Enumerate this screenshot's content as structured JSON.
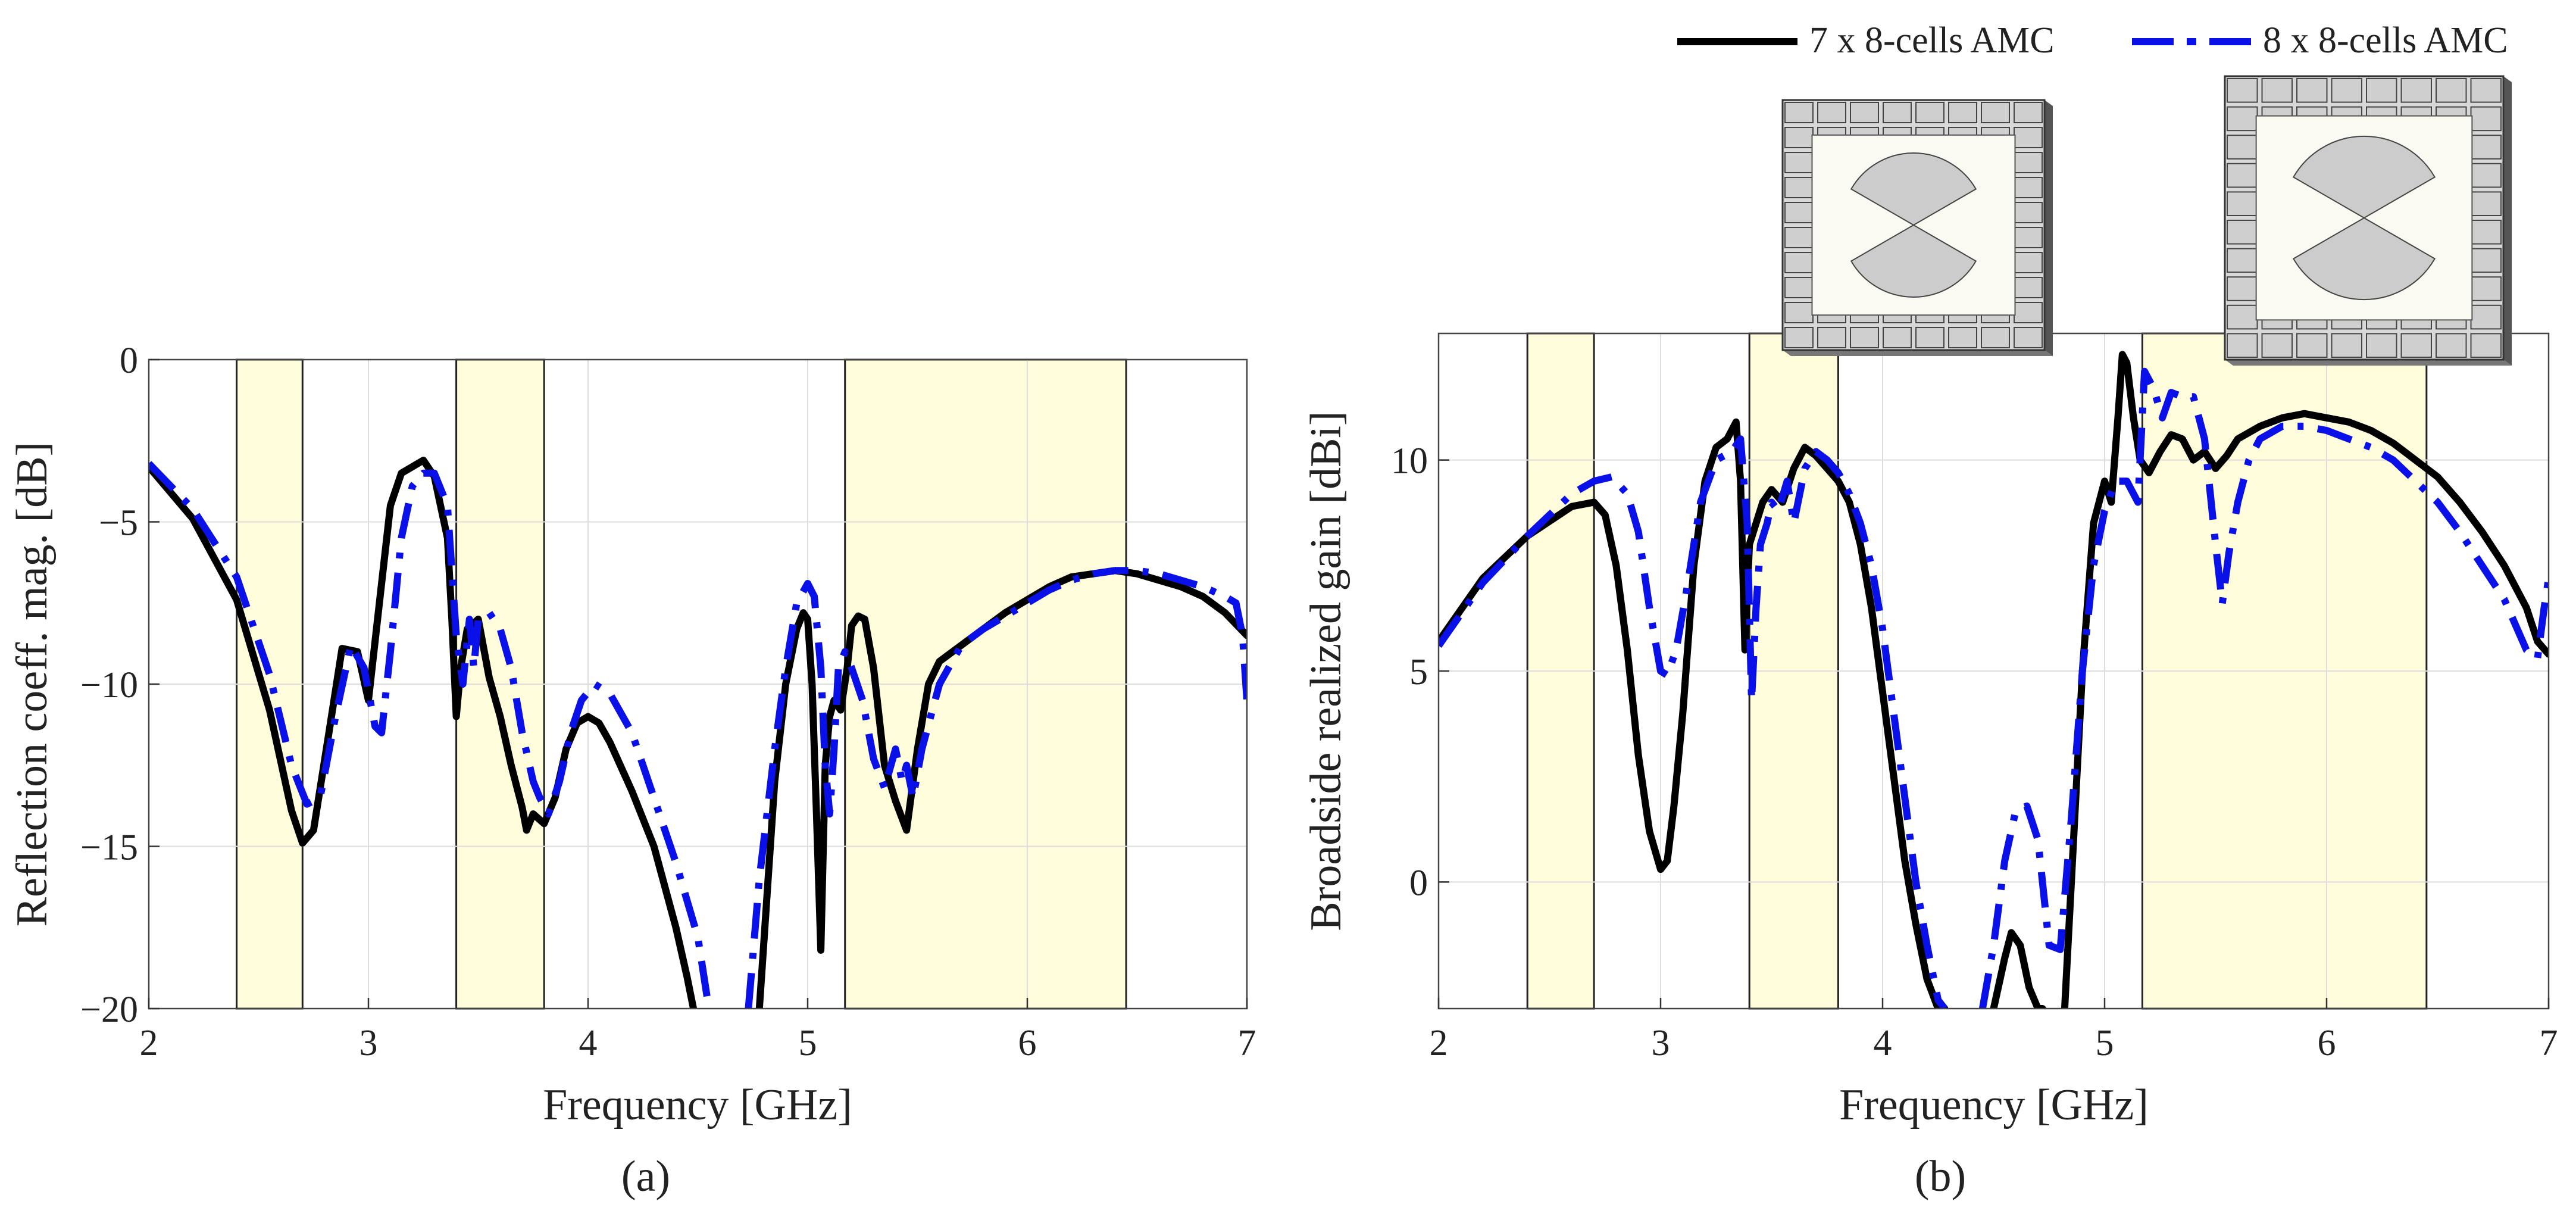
{
  "figure": {
    "legend": {
      "entries": [
        {
          "label": "7 x 8-cells AMC",
          "color": "#000000",
          "style": "solid"
        },
        {
          "label": "8 x 8-cells AMC",
          "color": "#0a10e8",
          "style": "dashdot"
        }
      ]
    },
    "colors": {
      "band_fill": "#fefcdb",
      "grid": "#dddddd",
      "axis": "#333333",
      "series1": "#000000",
      "series2": "#0a10e8"
    },
    "panel_a_caption": "(a)",
    "panel_b_caption": "(b)"
  },
  "chart_data": [
    {
      "type": "line",
      "panel": "a",
      "xlabel": "Frequency [GHz]",
      "ylabel": "Reflection coeff. mag. [dB]",
      "xlim": [
        2,
        7
      ],
      "ylim": [
        -20,
        0
      ],
      "xticks": [
        2,
        3,
        4,
        5,
        6,
        7
      ],
      "yticks": [
        0,
        -5,
        -10,
        -15,
        -20
      ],
      "grid": true,
      "shaded_bands": [
        [
          2.4,
          2.7
        ],
        [
          3.4,
          3.8
        ],
        [
          5.17,
          6.45
        ]
      ],
      "series": [
        {
          "name": "7 x 8-cells AMC",
          "x": [
            2.0,
            2.2,
            2.4,
            2.55,
            2.65,
            2.7,
            2.75,
            2.82,
            2.88,
            2.95,
            3.0,
            3.05,
            3.1,
            3.15,
            3.2,
            3.25,
            3.3,
            3.36,
            3.38,
            3.4,
            3.42,
            3.45,
            3.5,
            3.55,
            3.6,
            3.65,
            3.7,
            3.72,
            3.75,
            3.8,
            3.85,
            3.9,
            3.95,
            4.0,
            4.05,
            4.1,
            4.2,
            4.3,
            4.4,
            4.45,
            4.48,
            null,
            4.78,
            4.8,
            4.85,
            4.9,
            4.95,
            4.98,
            5.0,
            5.02,
            5.04,
            5.06,
            5.08,
            5.1,
            5.12,
            5.15,
            5.18,
            5.2,
            5.23,
            5.26,
            5.3,
            5.35,
            5.4,
            5.45,
            5.5,
            5.55,
            5.6,
            5.7,
            5.8,
            5.9,
            6.0,
            6.1,
            6.2,
            6.3,
            6.4,
            6.5,
            6.6,
            6.7,
            6.8,
            6.9,
            7.0
          ],
          "y": [
            -3.3,
            -4.9,
            -7.4,
            -10.8,
            -13.9,
            -14.9,
            -14.5,
            -11.5,
            -8.9,
            -9.0,
            -10.5,
            -7.5,
            -4.5,
            -3.5,
            -3.3,
            -3.1,
            -3.6,
            -5.5,
            -8.0,
            -11.0,
            -9.5,
            -8.3,
            -8.0,
            -9.8,
            -11.0,
            -12.5,
            -13.8,
            -14.5,
            -14.0,
            -14.3,
            -13.5,
            -12.0,
            -11.2,
            -11.0,
            -11.2,
            -11.8,
            -13.3,
            -15.0,
            -17.5,
            -19.0,
            -20.0,
            null,
            -20.0,
            -18.0,
            -13.0,
            -10.0,
            -8.3,
            -7.8,
            -8.0,
            -10.0,
            -14.0,
            -18.2,
            -12.5,
            -11.0,
            -10.5,
            -10.8,
            -9.5,
            -8.2,
            -7.9,
            -8.0,
            -9.5,
            -12.5,
            -13.6,
            -14.5,
            -12.0,
            -10.0,
            -9.3,
            -8.8,
            -8.3,
            -7.8,
            -7.4,
            -7.0,
            -6.7,
            -6.6,
            -6.5,
            -6.6,
            -6.8,
            -7.0,
            -7.3,
            -7.8,
            -8.5
          ]
        },
        {
          "name": "8 x 8-cells AMC",
          "x": [
            2.0,
            2.2,
            2.4,
            2.55,
            2.65,
            2.72,
            2.78,
            2.85,
            2.92,
            2.98,
            3.03,
            3.06,
            3.1,
            3.15,
            3.2,
            3.25,
            3.3,
            3.36,
            3.4,
            3.43,
            3.46,
            3.48,
            3.5,
            3.55,
            3.6,
            3.65,
            3.7,
            3.75,
            3.78,
            3.82,
            3.87,
            3.92,
            3.97,
            4.03,
            4.1,
            4.2,
            4.3,
            4.4,
            4.5,
            4.55,
            null,
            4.73,
            4.78,
            4.85,
            4.9,
            4.95,
            5.0,
            5.03,
            5.06,
            5.08,
            5.1,
            5.12,
            5.14,
            5.17,
            5.2,
            5.25,
            5.3,
            5.35,
            5.4,
            5.43,
            5.45,
            5.48,
            5.52,
            5.6,
            5.7,
            5.8,
            5.9,
            6.0,
            6.1,
            6.2,
            6.3,
            6.4,
            6.5,
            6.6,
            6.7,
            6.8,
            6.9,
            6.95,
            6.98,
            7.0
          ],
          "y": [
            -3.2,
            -4.6,
            -6.7,
            -9.7,
            -12.5,
            -13.7,
            -13.5,
            -11.0,
            -8.8,
            -9.5,
            -11.3,
            -11.5,
            -9.0,
            -5.5,
            -3.9,
            -3.5,
            -3.5,
            -4.5,
            -8.5,
            -10.0,
            -8.0,
            -9.5,
            -8.0,
            -7.8,
            -8.3,
            -9.5,
            -11.5,
            -13.0,
            -13.5,
            -14.0,
            -13.0,
            -11.5,
            -10.5,
            -10.0,
            -10.3,
            -11.5,
            -13.5,
            -15.5,
            -17.8,
            -20.0,
            null,
            -20.0,
            -16.0,
            -12.0,
            -9.5,
            -7.5,
            -6.9,
            -7.3,
            -9.5,
            -12.5,
            -14.0,
            -12.0,
            -9.5,
            -9.0,
            -9.5,
            -10.5,
            -12.3,
            -13.2,
            -12.0,
            -13.0,
            -12.5,
            -13.5,
            -12.0,
            -10.0,
            -8.8,
            -8.3,
            -7.9,
            -7.5,
            -7.1,
            -6.8,
            -6.6,
            -6.5,
            -6.5,
            -6.6,
            -6.8,
            -7.0,
            -7.3,
            -7.5,
            -8.5,
            -10.5
          ]
        }
      ]
    },
    {
      "type": "line",
      "panel": "b",
      "xlabel": "Frequency [GHz]",
      "ylabel": "Broadside realized gain [dBi]",
      "xlim": [
        2,
        7
      ],
      "ylim": [
        -3,
        13
      ],
      "xticks": [
        2,
        3,
        4,
        5,
        6,
        7
      ],
      "yticks": [
        10,
        5,
        0
      ],
      "grid": true,
      "shaded_bands": [
        [
          2.4,
          2.7
        ],
        [
          3.4,
          3.8
        ],
        [
          5.17,
          6.45
        ]
      ],
      "legend": [
        "7 x 8-cells AMC",
        "8 x 8-cells AMC"
      ],
      "series": [
        {
          "name": "7 x 8-cells AMC",
          "x": [
            2.0,
            2.2,
            2.4,
            2.6,
            2.7,
            2.75,
            2.8,
            2.85,
            2.9,
            2.95,
            3.0,
            3.03,
            3.06,
            3.1,
            3.15,
            3.2,
            3.25,
            3.3,
            3.34,
            3.36,
            3.38,
            3.4,
            3.43,
            3.46,
            3.5,
            3.55,
            3.6,
            3.65,
            3.7,
            3.75,
            3.8,
            3.85,
            3.9,
            3.95,
            4.0,
            4.05,
            4.1,
            4.15,
            4.2,
            4.25,
            4.28,
            null,
            4.5,
            4.55,
            4.58,
            4.62,
            4.66,
            4.7,
            4.72,
            null,
            4.82,
            4.85,
            4.9,
            4.95,
            5.0,
            5.03,
            5.06,
            5.08,
            5.1,
            5.13,
            5.16,
            5.2,
            5.25,
            5.3,
            5.35,
            5.4,
            5.45,
            5.5,
            5.55,
            5.6,
            5.7,
            5.8,
            5.9,
            6.0,
            6.1,
            6.2,
            6.3,
            6.4,
            6.5,
            6.6,
            6.7,
            6.8,
            6.9,
            6.95,
            7.0
          ],
          "y": [
            5.7,
            7.2,
            8.2,
            8.9,
            9.0,
            8.7,
            7.5,
            5.5,
            3.0,
            1.2,
            0.3,
            0.5,
            1.8,
            4.0,
            7.5,
            9.5,
            10.3,
            10.5,
            10.9,
            9.5,
            5.5,
            8.0,
            8.5,
            9.0,
            9.3,
            9.0,
            9.8,
            10.3,
            10.1,
            9.8,
            9.5,
            9.0,
            8.0,
            6.5,
            4.5,
            2.5,
            0.5,
            -1.0,
            -2.3,
            -3.0,
            -3.0,
            null,
            -3.0,
            -1.8,
            -1.2,
            -1.5,
            -2.5,
            -3.0,
            -3.0,
            null,
            -3.0,
            0.0,
            5.0,
            8.5,
            9.5,
            9.0,
            11.0,
            12.5,
            12.3,
            11.0,
            10.0,
            9.7,
            10.2,
            10.6,
            10.5,
            10.0,
            10.2,
            9.8,
            10.1,
            10.5,
            10.8,
            11.0,
            11.1,
            11.0,
            10.9,
            10.7,
            10.4,
            10.0,
            9.6,
            9.0,
            8.3,
            7.5,
            6.5,
            5.7,
            5.4
          ]
        },
        {
          "name": "8 x 8-cells AMC",
          "x": [
            2.0,
            2.2,
            2.4,
            2.6,
            2.7,
            2.78,
            2.85,
            2.9,
            2.95,
            3.0,
            3.03,
            3.07,
            3.12,
            3.18,
            3.25,
            3.32,
            3.36,
            3.39,
            3.41,
            3.43,
            3.45,
            3.48,
            3.5,
            3.53,
            3.57,
            3.6,
            3.65,
            3.7,
            3.75,
            3.8,
            3.85,
            3.9,
            3.95,
            4.0,
            4.05,
            4.1,
            4.15,
            4.2,
            4.25,
            4.28,
            null,
            4.45,
            4.5,
            4.55,
            4.6,
            4.65,
            4.7,
            4.75,
            4.8,
            4.85,
            4.9,
            4.95,
            5.0,
            5.05,
            5.1,
            5.15,
            5.18,
            5.22,
            5.26,
            5.3,
            5.35,
            5.4,
            5.45,
            5.5,
            5.53,
            5.56,
            5.6,
            5.65,
            5.7,
            5.8,
            5.9,
            6.0,
            6.1,
            6.2,
            6.3,
            6.4,
            6.5,
            6.6,
            6.7,
            6.8,
            6.9,
            6.95,
            6.98,
            7.0
          ],
          "y": [
            5.6,
            7.1,
            8.2,
            9.2,
            9.5,
            9.6,
            9.2,
            8.3,
            6.5,
            5.0,
            4.9,
            5.5,
            7.0,
            9.0,
            10.0,
            10.2,
            10.5,
            8.5,
            4.3,
            6.5,
            8.0,
            8.5,
            9.0,
            8.8,
            9.5,
            8.5,
            9.8,
            10.2,
            10.0,
            9.7,
            9.2,
            8.5,
            7.5,
            6.0,
            4.0,
            2.0,
            0.0,
            -1.5,
            -2.8,
            -3.0,
            null,
            -3.0,
            -1.5,
            0.5,
            1.7,
            1.8,
            1.0,
            -1.5,
            -1.6,
            1.5,
            5.0,
            7.5,
            8.8,
            9.5,
            9.5,
            9.0,
            12.1,
            11.7,
            11.0,
            11.6,
            11.5,
            11.5,
            10.5,
            8.0,
            6.6,
            7.8,
            9.0,
            10.0,
            10.5,
            10.8,
            10.8,
            10.7,
            10.5,
            10.3,
            10.0,
            9.5,
            9.0,
            8.3,
            7.5,
            6.7,
            5.5,
            5.3,
            6.5,
            7.2
          ]
        }
      ]
    }
  ]
}
